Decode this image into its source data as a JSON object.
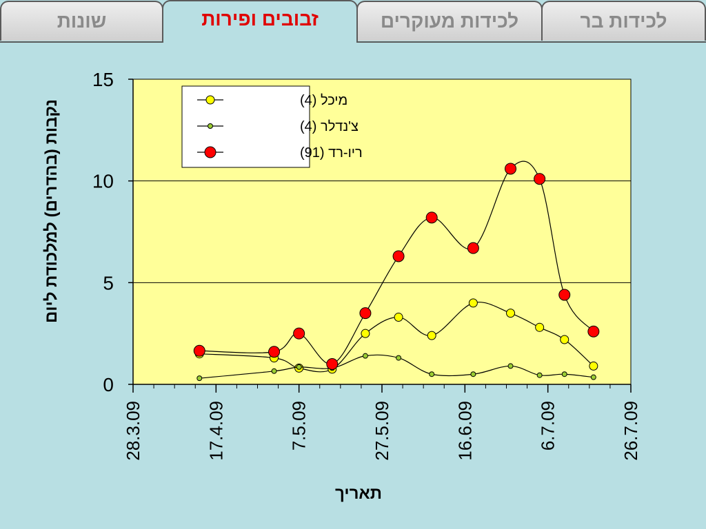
{
  "tabs": [
    {
      "label": "שונות",
      "active": false
    },
    {
      "label": "זבובים ופירות",
      "active": true
    },
    {
      "label": "לכידות מעוקרים",
      "active": false
    },
    {
      "label": "לכידות בר",
      "active": false
    }
  ],
  "colors": {
    "background": "#b8dfe3",
    "plot_area": "#ffff99",
    "active_tab_text": "#e00000"
  },
  "chart_data": {
    "type": "line",
    "title": "",
    "xlabel": "תאריך",
    "ylabel": "נקבות (בהדרים) למלכודת ליום",
    "x_range": [
      "28.3.09",
      "26.7.09"
    ],
    "x_ticks": [
      "28.3.09",
      "17.4.09",
      "7.5.09",
      "27.5.09",
      "16.6.09",
      "6.7.09",
      "26.7.09"
    ],
    "ylim": [
      0,
      15
    ],
    "y_ticks": [
      0,
      5,
      10,
      15
    ],
    "grid": true,
    "legend_position": "top-left",
    "series": [
      {
        "name": "מיכל (4)",
        "color": "#ffff00",
        "marker": "medium",
        "points": [
          {
            "date": "13.4.09",
            "y": 1.5
          },
          {
            "date": "1.5.09",
            "y": 1.3
          },
          {
            "date": "7.5.09",
            "y": 0.8
          },
          {
            "date": "15.5.09",
            "y": 0.75
          },
          {
            "date": "23.5.09",
            "y": 2.5
          },
          {
            "date": "31.5.09",
            "y": 3.3
          },
          {
            "date": "8.6.09",
            "y": 2.4
          },
          {
            "date": "18.6.09",
            "y": 4.0
          },
          {
            "date": "27.6.09",
            "y": 3.5
          },
          {
            "date": "4.7.09",
            "y": 2.8
          },
          {
            "date": "10.7.09",
            "y": 2.2
          },
          {
            "date": "17.7.09",
            "y": 0.9
          }
        ]
      },
      {
        "name": "צ'נדלר (4)",
        "color": "#9acd32",
        "marker": "small",
        "points": [
          {
            "date": "13.4.09",
            "y": 0.3
          },
          {
            "date": "1.5.09",
            "y": 0.65
          },
          {
            "date": "7.5.09",
            "y": 0.85
          },
          {
            "date": "15.5.09",
            "y": 0.8
          },
          {
            "date": "23.5.09",
            "y": 1.4
          },
          {
            "date": "31.5.09",
            "y": 1.3
          },
          {
            "date": "8.6.09",
            "y": 0.5
          },
          {
            "date": "18.6.09",
            "y": 0.5
          },
          {
            "date": "27.6.09",
            "y": 0.9
          },
          {
            "date": "4.7.09",
            "y": 0.45
          },
          {
            "date": "10.7.09",
            "y": 0.5
          },
          {
            "date": "17.7.09",
            "y": 0.35
          }
        ]
      },
      {
        "name": "ריו-רד (91)",
        "color": "#ff0000",
        "marker": "large",
        "points": [
          {
            "date": "13.4.09",
            "y": 1.65
          },
          {
            "date": "1.5.09",
            "y": 1.6
          },
          {
            "date": "7.5.09",
            "y": 2.5
          },
          {
            "date": "15.5.09",
            "y": 1.0
          },
          {
            "date": "23.5.09",
            "y": 3.5
          },
          {
            "date": "31.5.09",
            "y": 6.3
          },
          {
            "date": "8.6.09",
            "y": 8.2
          },
          {
            "date": "18.6.09",
            "y": 6.7
          },
          {
            "date": "27.6.09",
            "y": 10.6
          },
          {
            "date": "4.7.09",
            "y": 10.1
          },
          {
            "date": "10.7.09",
            "y": 4.4
          },
          {
            "date": "17.7.09",
            "y": 2.6
          }
        ]
      }
    ]
  }
}
